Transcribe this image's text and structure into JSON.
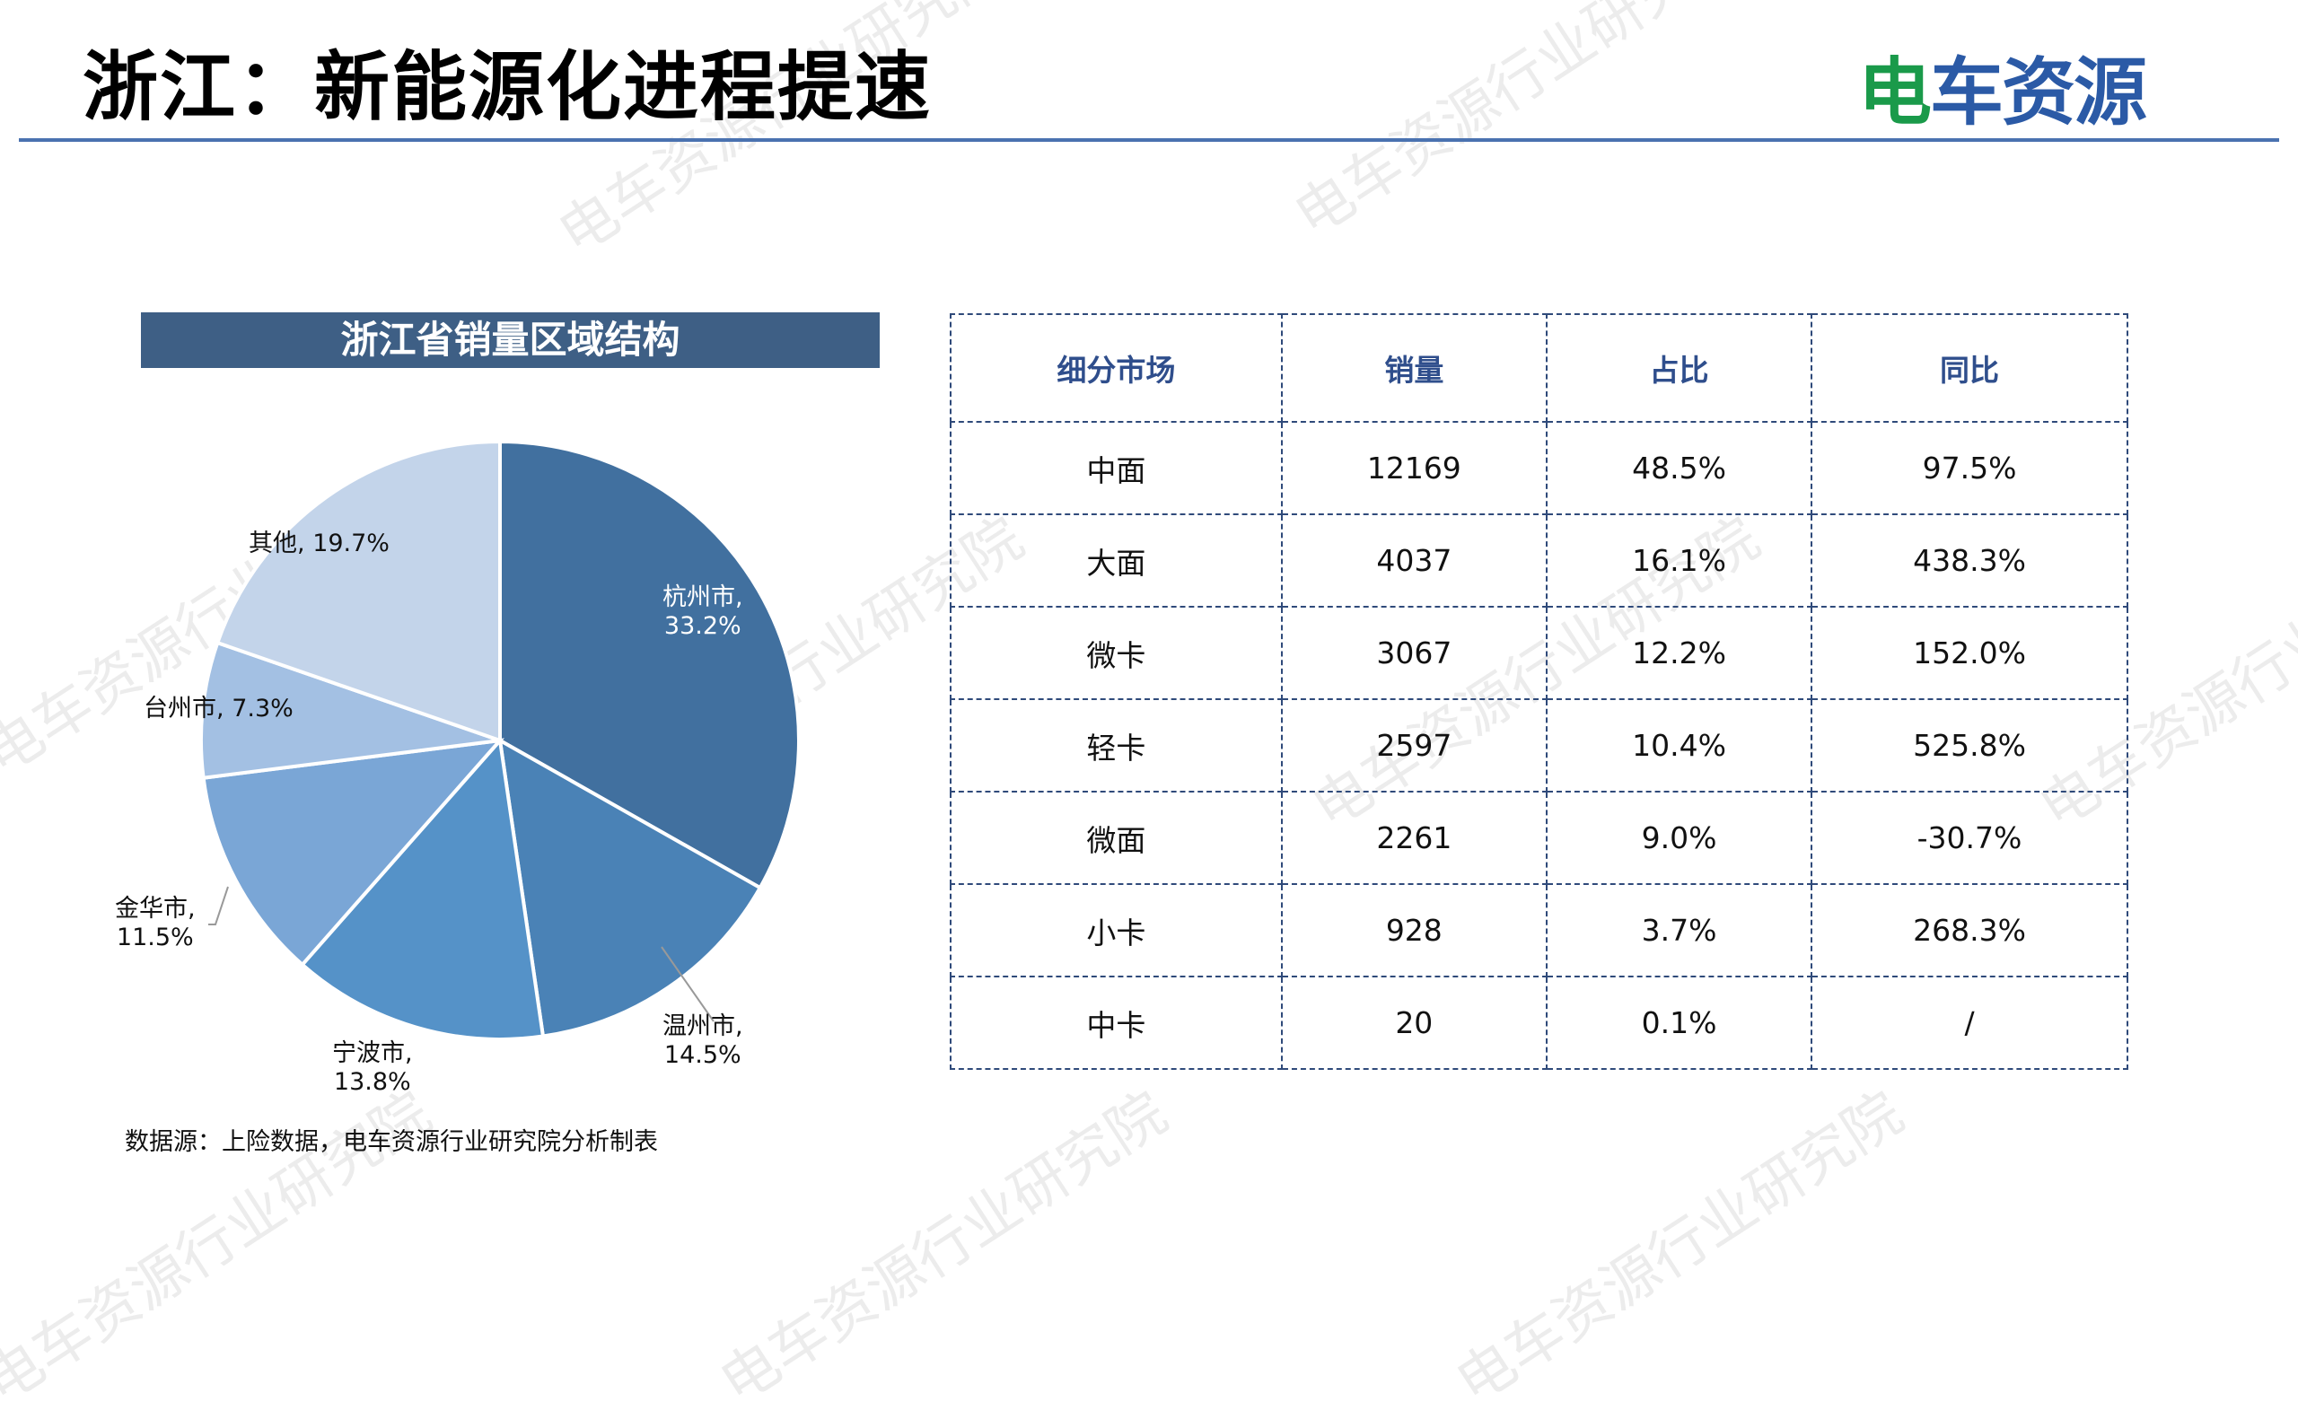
{
  "header": {
    "title": "浙江：新能源化进程提速",
    "logo_main": "电",
    "logo_rest": "车资源"
  },
  "watermark": "电车资源行业研究院",
  "chart_data": {
    "type": "pie",
    "title": "浙江省销量区域结构",
    "slices": [
      {
        "name": "杭州市",
        "value": 33.2,
        "label": "杭州市,",
        "pct": "33.2%",
        "color": "#41709f"
      },
      {
        "name": "温州市",
        "value": 14.5,
        "label": "温州市,",
        "pct": "14.5%",
        "color": "#4a82b6"
      },
      {
        "name": "宁波市",
        "value": 13.8,
        "label": "宁波市,",
        "pct": "13.8%",
        "color": "#5592c8"
      },
      {
        "name": "金华市",
        "value": 11.5,
        "label": "金华市,",
        "pct": "11.5%",
        "color": "#7aa6d6"
      },
      {
        "name": "台州市",
        "value": 7.3,
        "label": "台州市,",
        "pct": "7.3%",
        "color": "#a3c0e3"
      },
      {
        "name": "其他",
        "value": 19.7,
        "label": "其他,",
        "pct": "19.7%",
        "color": "#c3d4ea"
      }
    ],
    "source": "数据源：上险数据，电车资源行业研究院分析制表"
  },
  "table": {
    "headers": [
      "细分市场",
      "销量",
      "占比",
      "同比"
    ],
    "rows": [
      [
        "中面",
        "12169",
        "48.5%",
        "97.5%"
      ],
      [
        "大面",
        "4037",
        "16.1%",
        "438.3%"
      ],
      [
        "微卡",
        "3067",
        "12.2%",
        "152.0%"
      ],
      [
        "轻卡",
        "2597",
        "10.4%",
        "525.8%"
      ],
      [
        "微面",
        "2261",
        "9.0%",
        "-30.7%"
      ],
      [
        "小卡",
        "928",
        "3.7%",
        "268.3%"
      ],
      [
        "中卡",
        "20",
        "0.1%",
        "/"
      ]
    ]
  }
}
